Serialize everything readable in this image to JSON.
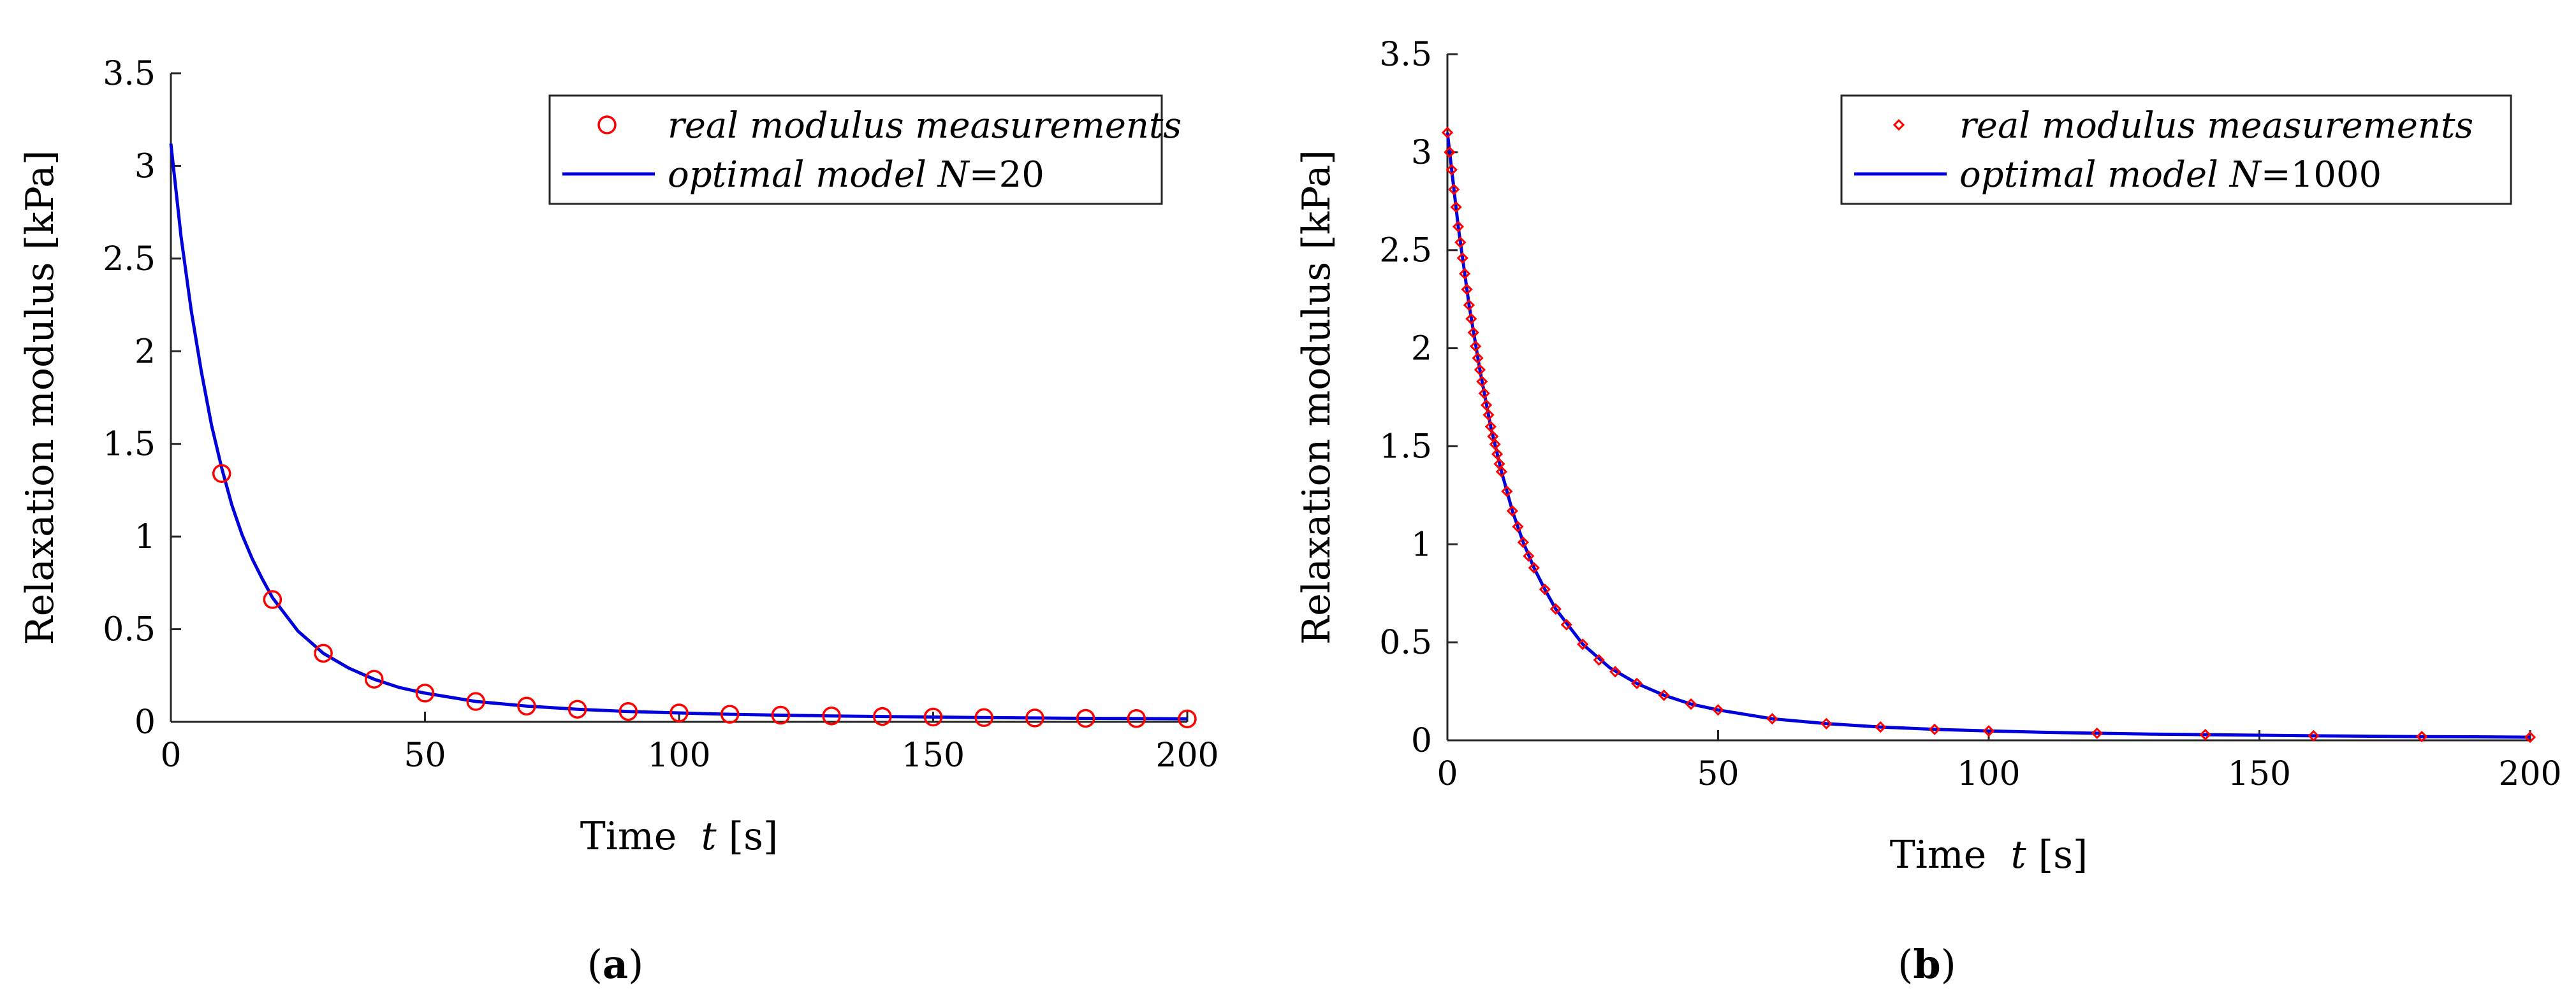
{
  "chart_data": [
    {
      "type": "scatter+line",
      "panel_label": "a",
      "xlabel_prefix": "Time",
      "xlabel_var": "t",
      "xlabel_unit": "[s]",
      "ylabel": "Relaxation modulus [kPa]",
      "xlim": [
        0,
        200
      ],
      "ylim": [
        0,
        3.5
      ],
      "xticks": [
        0,
        50,
        100,
        150,
        200
      ],
      "yticks": [
        0,
        0.5,
        1,
        1.5,
        2,
        2.5,
        3,
        3.5
      ],
      "xtick_labels": [
        "0",
        "50",
        "100",
        "150",
        "200"
      ],
      "ytick_labels": [
        "0",
        "0.5",
        "1",
        "1.5",
        "2",
        "2.5",
        "3",
        "3.5"
      ],
      "legend_position": "top-right",
      "series": [
        {
          "name": "real modulus measurements",
          "kind": "marker",
          "marker": "circle",
          "color": "#ff0000",
          "x": [
            10,
            20,
            30,
            40,
            50,
            60,
            70,
            80,
            90,
            100,
            110,
            120,
            130,
            140,
            150,
            160,
            170,
            180,
            190,
            200
          ],
          "y": [
            1.34,
            0.66,
            0.37,
            0.23,
            0.155,
            0.11,
            0.085,
            0.068,
            0.056,
            0.048,
            0.041,
            0.036,
            0.032,
            0.029,
            0.026,
            0.023,
            0.021,
            0.019,
            0.018,
            0.016
          ]
        },
        {
          "name": "optimal model",
          "name_var": "N",
          "name_value": "=20",
          "kind": "line",
          "color": "#0000dd",
          "x": [
            0,
            2,
            4,
            6,
            8,
            10,
            12,
            14,
            16,
            18,
            20,
            25,
            30,
            35,
            40,
            45,
            50,
            60,
            70,
            80,
            90,
            100,
            110,
            120,
            130,
            140,
            150,
            160,
            170,
            180,
            190,
            200
          ],
          "y": [
            3.12,
            2.62,
            2.22,
            1.89,
            1.6,
            1.37,
            1.17,
            1.01,
            0.88,
            0.77,
            0.67,
            0.49,
            0.37,
            0.29,
            0.23,
            0.185,
            0.155,
            0.11,
            0.085,
            0.068,
            0.056,
            0.048,
            0.041,
            0.036,
            0.032,
            0.029,
            0.026,
            0.023,
            0.021,
            0.019,
            0.018,
            0.016
          ]
        }
      ]
    },
    {
      "type": "scatter+line",
      "panel_label": "b",
      "xlabel_prefix": "Time",
      "xlabel_var": "t",
      "xlabel_unit": "[s]",
      "ylabel": "Relaxation modulus [kPa]",
      "xlim": [
        0,
        200
      ],
      "ylim": [
        0,
        3.5
      ],
      "xticks": [
        0,
        50,
        100,
        150,
        200
      ],
      "yticks": [
        0,
        0.5,
        1,
        1.5,
        2,
        2.5,
        3,
        3.5
      ],
      "xtick_labels": [
        "0",
        "50",
        "100",
        "150",
        "200"
      ],
      "ytick_labels": [
        "0",
        "0.5",
        "1",
        "1.5",
        "2",
        "2.5",
        "3",
        "3.5"
      ],
      "legend_position": "top-right",
      "series": [
        {
          "name": "real modulus measurements",
          "kind": "marker",
          "marker": "diamond",
          "color": "#ff0000",
          "x": [
            0,
            0.4,
            0.8,
            1.2,
            1.6,
            2,
            2.4,
            2.8,
            3.2,
            3.6,
            4,
            4.4,
            4.8,
            5.2,
            5.6,
            6,
            6.4,
            6.8,
            7.2,
            7.6,
            8,
            8.4,
            8.8,
            9.2,
            9.6,
            10,
            11,
            12,
            13,
            14,
            15,
            16,
            18,
            20,
            22,
            25,
            28,
            31,
            35,
            40,
            45,
            50,
            60,
            70,
            80,
            90,
            100,
            120,
            140,
            160,
            180,
            200
          ],
          "y": [
            3.1,
            3.0,
            2.91,
            2.81,
            2.72,
            2.62,
            2.54,
            2.46,
            2.38,
            2.3,
            2.22,
            2.15,
            2.08,
            2.01,
            1.95,
            1.89,
            1.83,
            1.77,
            1.71,
            1.66,
            1.6,
            1.55,
            1.51,
            1.46,
            1.41,
            1.37,
            1.27,
            1.17,
            1.09,
            1.01,
            0.94,
            0.88,
            0.77,
            0.67,
            0.59,
            0.49,
            0.41,
            0.35,
            0.29,
            0.23,
            0.185,
            0.155,
            0.11,
            0.085,
            0.068,
            0.056,
            0.048,
            0.036,
            0.029,
            0.023,
            0.019,
            0.016
          ]
        },
        {
          "name": "optimal model",
          "name_var": "N",
          "name_value": "=1000",
          "kind": "line",
          "color": "#0000dd",
          "x": [
            0,
            2,
            4,
            6,
            8,
            10,
            12,
            14,
            16,
            18,
            20,
            25,
            30,
            35,
            40,
            45,
            50,
            60,
            70,
            80,
            90,
            100,
            110,
            120,
            130,
            140,
            150,
            160,
            170,
            180,
            190,
            200
          ],
          "y": [
            3.1,
            2.62,
            2.22,
            1.89,
            1.6,
            1.37,
            1.17,
            1.01,
            0.88,
            0.77,
            0.67,
            0.49,
            0.37,
            0.29,
            0.23,
            0.185,
            0.155,
            0.11,
            0.085,
            0.068,
            0.056,
            0.048,
            0.041,
            0.036,
            0.032,
            0.029,
            0.026,
            0.023,
            0.021,
            0.019,
            0.018,
            0.016
          ]
        }
      ]
    }
  ]
}
